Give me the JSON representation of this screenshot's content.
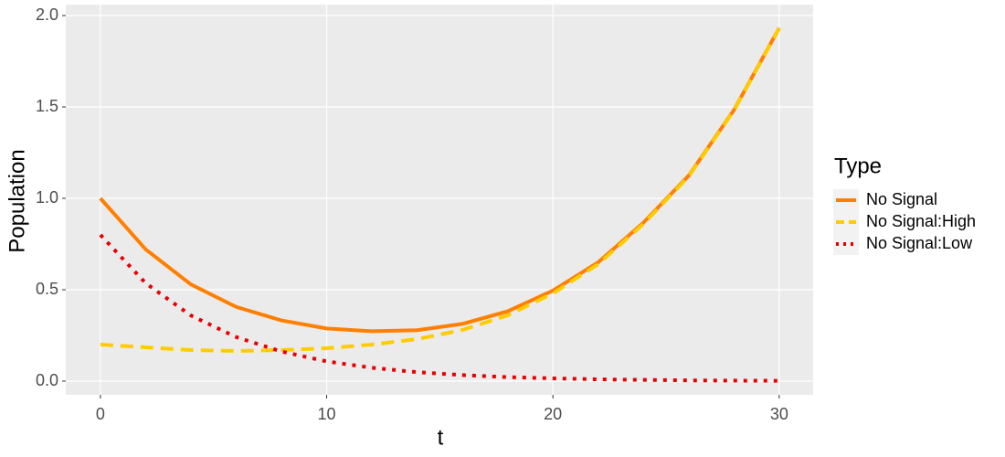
{
  "chart_data": {
    "type": "line",
    "x_label": "t",
    "y_label": "Population",
    "legend_title": "Type",
    "x": [
      0,
      2,
      4,
      6,
      8,
      10,
      12,
      14,
      16,
      18,
      20,
      22,
      24,
      26,
      28,
      30
    ],
    "series": [
      {
        "name": "No Signal",
        "color": "#ff7f00",
        "dash": "solid",
        "values": [
          1.0,
          0.721,
          0.529,
          0.406,
          0.332,
          0.288,
          0.273,
          0.279,
          0.313,
          0.382,
          0.495,
          0.65,
          0.867,
          1.124,
          1.483,
          1.932
        ]
      },
      {
        "name": "No Signal:High",
        "color": "#ffcc00",
        "dash": "dashed",
        "values": [
          0.2,
          0.185,
          0.17,
          0.165,
          0.17,
          0.18,
          0.2,
          0.23,
          0.28,
          0.36,
          0.48,
          0.64,
          0.86,
          1.12,
          1.48,
          1.93
        ]
      },
      {
        "name": "No Signal:Low",
        "color": "#e60000",
        "dash": "dotted",
        "values": [
          0.8,
          0.536,
          0.359,
          0.241,
          0.162,
          0.108,
          0.073,
          0.049,
          0.033,
          0.022,
          0.015,
          0.01,
          0.007,
          0.004,
          0.003,
          0.002
        ]
      }
    ],
    "xlim": [
      -1.53,
      31.5
    ],
    "ylim": [
      -0.075,
      2.06
    ],
    "xticks": [
      0,
      10,
      20,
      30
    ],
    "yticks": [
      {
        "value": 0,
        "label": "0.0"
      },
      {
        "value": 0.5,
        "label": "0.5"
      },
      {
        "value": 1,
        "label": "1.0"
      },
      {
        "value": 1.5,
        "label": "1.5"
      },
      {
        "value": 2,
        "label": "2.0"
      }
    ],
    "grid": true,
    "legend_position": "right"
  }
}
